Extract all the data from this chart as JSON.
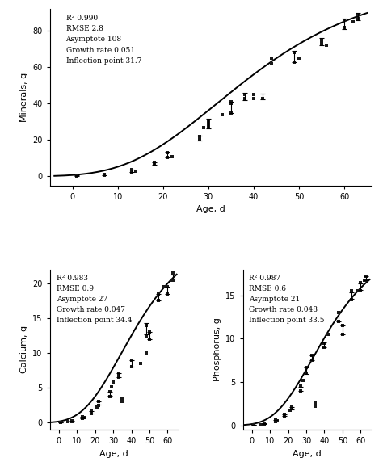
{
  "minerals": {
    "asymptote": 108,
    "growth_rate": 0.051,
    "inflection": 31.7,
    "ylabel": "Minerals, g",
    "xlabel": "Age, d",
    "ylim": [
      -5,
      92
    ],
    "yticks": [
      0,
      20,
      40,
      60,
      80
    ],
    "xlim": [
      -5,
      66
    ],
    "xticks": [
      0,
      10,
      20,
      30,
      40,
      50,
      60
    ],
    "annotation": "R² 0.990\nRMSE 2.8\nAsymptote 108\nGrowth rate 0.051\nInflection point 31.7",
    "eb_ages": [
      1,
      7,
      13,
      18,
      21,
      28,
      30,
      35,
      38,
      42,
      49,
      55,
      60,
      63
    ],
    "eb_means": [
      0.3,
      1.0,
      3.0,
      7.0,
      12.0,
      21.0,
      29.0,
      38.0,
      44.0,
      44.0,
      66.0,
      74.0,
      84.0,
      88.0
    ],
    "eb_errs": [
      0.1,
      0.3,
      0.5,
      0.5,
      1.5,
      1.5,
      2.5,
      3.0,
      2.0,
      1.5,
      3.0,
      2.0,
      3.0,
      2.0
    ],
    "sc_ages": [
      1,
      1,
      7,
      7,
      13,
      13,
      14,
      18,
      18,
      21,
      21,
      22,
      28,
      28,
      29,
      30,
      30,
      30,
      33,
      35,
      35,
      35,
      38,
      38,
      40,
      40,
      42,
      44,
      44,
      49,
      49,
      50,
      55,
      55,
      56,
      60,
      60,
      62,
      63,
      63
    ],
    "sc_vals": [
      0.2,
      0.4,
      0.8,
      1.2,
      2.5,
      3.5,
      3.0,
      6.5,
      7.5,
      10.5,
      13.0,
      11.0,
      20.0,
      22.0,
      27.0,
      27.5,
      30.0,
      31.0,
      34.0,
      35.0,
      40.0,
      41.0,
      43.0,
      45.0,
      43.0,
      45.0,
      43.0,
      62.0,
      65.0,
      63.0,
      68.0,
      65.0,
      73.0,
      75.0,
      72.0,
      82.0,
      86.0,
      85.0,
      87.0,
      89.0
    ]
  },
  "calcium": {
    "asymptote": 27,
    "growth_rate": 0.047,
    "inflection": 34.4,
    "ylabel": "Calcium, g",
    "xlabel": "Age, d",
    "ylim": [
      -1,
      22
    ],
    "yticks": [
      0,
      5,
      10,
      15,
      20
    ],
    "xlim": [
      -5,
      66
    ],
    "xticks": [
      0,
      10,
      20,
      30,
      40,
      50,
      60
    ],
    "annotation": "R² 0.983\nRMSE 0.9\nAsymptote 27\nGrowth rate 0.047\nInflection point 34.4",
    "eb_ages": [
      1,
      7,
      13,
      18,
      22,
      28,
      33,
      40,
      48,
      50,
      55,
      60,
      63
    ],
    "eb_means": [
      0.05,
      0.2,
      0.7,
      1.5,
      2.8,
      4.2,
      6.8,
      8.5,
      13.5,
      12.5,
      18.0,
      19.0,
      21.0
    ],
    "eb_errs": [
      0.02,
      0.05,
      0.1,
      0.15,
      0.2,
      0.3,
      0.3,
      0.5,
      0.8,
      0.5,
      0.5,
      0.5,
      0.3
    ],
    "sc_ages": [
      1,
      1,
      5,
      7,
      7,
      13,
      13,
      14,
      18,
      18,
      21,
      22,
      22,
      28,
      28,
      29,
      30,
      33,
      33,
      35,
      35,
      40,
      40,
      45,
      48,
      48,
      48,
      50,
      50,
      55,
      55,
      58,
      60,
      60,
      62,
      63,
      63
    ],
    "sc_vals": [
      0.04,
      0.06,
      0.1,
      0.17,
      0.22,
      0.6,
      0.8,
      0.7,
      1.3,
      1.7,
      2.2,
      2.5,
      3.0,
      3.8,
      4.5,
      5.2,
      5.8,
      6.5,
      7.0,
      3.0,
      3.5,
      8.0,
      9.0,
      8.5,
      12.5,
      14.0,
      10.0,
      12.0,
      13.0,
      17.5,
      18.5,
      19.5,
      18.5,
      19.5,
      20.5,
      20.5,
      21.5
    ]
  },
  "phosphorus": {
    "asymptote": 21,
    "growth_rate": 0.048,
    "inflection": 33.5,
    "ylabel": "Phosphorus, g",
    "xlabel": "Age, d",
    "ylim": [
      -0.5,
      18
    ],
    "yticks": [
      0,
      5,
      10,
      15
    ],
    "xlim": [
      -5,
      66
    ],
    "xticks": [
      0,
      10,
      20,
      30,
      40,
      50,
      60
    ],
    "annotation": "R² 0.987\nRMSE 0.6\nAsymptote 21\nGrowth rate 0.048\nInflection point 33.5",
    "eb_ages": [
      1,
      7,
      13,
      18,
      22,
      27,
      30,
      33,
      40,
      48,
      50,
      55,
      60,
      63
    ],
    "eb_means": [
      0.04,
      0.17,
      0.5,
      1.2,
      2.0,
      4.2,
      6.3,
      7.8,
      9.3,
      12.5,
      11.0,
      15.0,
      16.0,
      17.0
    ],
    "eb_errs": [
      0.01,
      0.04,
      0.08,
      0.1,
      0.15,
      0.25,
      0.4,
      0.25,
      0.25,
      0.5,
      0.5,
      0.4,
      0.4,
      0.2
    ],
    "sc_ages": [
      1,
      1,
      5,
      7,
      7,
      13,
      13,
      14,
      18,
      18,
      21,
      22,
      22,
      27,
      27,
      28,
      30,
      30,
      33,
      33,
      35,
      35,
      40,
      40,
      42,
      48,
      48,
      50,
      50,
      55,
      55,
      58,
      60,
      60,
      62,
      63,
      63
    ],
    "sc_vals": [
      0.03,
      0.05,
      0.08,
      0.14,
      0.2,
      0.42,
      0.57,
      0.5,
      1.1,
      1.3,
      1.7,
      1.9,
      2.2,
      4.0,
      4.5,
      5.2,
      6.0,
      6.7,
      7.5,
      8.1,
      2.2,
      2.6,
      9.0,
      9.5,
      10.5,
      12.0,
      13.0,
      10.5,
      11.5,
      14.5,
      15.5,
      15.5,
      15.5,
      16.5,
      16.8,
      16.8,
      17.2
    ]
  },
  "line_color": "#000000",
  "scatter_color": "#1a1a1a",
  "errorbar_color": "#000000"
}
